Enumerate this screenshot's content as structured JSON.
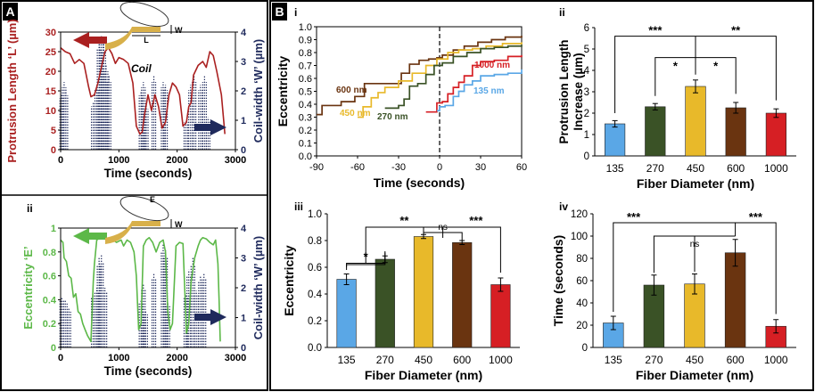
{
  "panel_labels": {
    "A": "A",
    "B": "B"
  },
  "sub_labels": {
    "Ai": "i",
    "Aii": "ii",
    "Bi": "i",
    "Bii": "ii",
    "Biii": "iii",
    "Biv": "iv"
  },
  "colors": {
    "red": "#aa2020",
    "navy": "#1f2a5c",
    "green": "#5cb848",
    "blue": "#5aa7e6",
    "darkgreen": "#3a5226",
    "yellow": "#e8b92a",
    "brown": "#6a3410",
    "bred": "#d61f24",
    "gold": "#d8b04a"
  },
  "chart_data": [
    {
      "id": "Ai",
      "type": "line",
      "title": "",
      "xlabel": "Time (seconds)",
      "ylabel": "Protrusion Length ‘L’ (µm)",
      "y2label": "Coil-width ‘W’ (µm)",
      "annotation": "Coil",
      "diagram_labels": {
        "W": "W",
        "L": "L"
      },
      "xlim": [
        0,
        3000
      ],
      "ylim": [
        0,
        30
      ],
      "y2lim": [
        0,
        4
      ],
      "xticks": [
        0,
        1000,
        2000,
        3000
      ],
      "yticks": [
        0,
        5,
        10,
        15,
        20,
        25,
        30
      ],
      "y2ticks": [
        0,
        1,
        2,
        3,
        4
      ],
      "series": [
        {
          "name": "Protrusion length",
          "axis": "left",
          "color": "#aa2020",
          "x": [
            0,
            80,
            160,
            240,
            320,
            400,
            480,
            520,
            580,
            640,
            700,
            760,
            820,
            880,
            940,
            1000,
            1080,
            1160,
            1240,
            1300,
            1360,
            1400,
            1440,
            1500,
            1560,
            1620,
            1680,
            1740,
            1800,
            1860,
            1920,
            1980,
            2040,
            2100,
            2160,
            2200,
            2240,
            2280,
            2360,
            2440,
            2500,
            2560,
            2620,
            2680,
            2760,
            2820
          ],
          "y": [
            26,
            25,
            24.5,
            22,
            23,
            22,
            16,
            13.5,
            14,
            17,
            21,
            25,
            26,
            24.5,
            22,
            23.5,
            23,
            22,
            17,
            6,
            4,
            4.5,
            9,
            14,
            10,
            14,
            11,
            5.5,
            7,
            14,
            17,
            16,
            14,
            6,
            7,
            11,
            12,
            19,
            21.5,
            22.5,
            21,
            25,
            24,
            20,
            14,
            4
          ]
        },
        {
          "name": "Coil-width",
          "axis": "right",
          "color": "#1f2a5c",
          "style": "dotted",
          "spikes": [
            [
              20,
              1.9
            ],
            [
              60,
              2.3
            ],
            [
              90,
              2.0
            ],
            [
              560,
              1.6
            ],
            [
              620,
              2.2
            ],
            [
              660,
              3.7
            ],
            [
              700,
              3.9
            ],
            [
              740,
              3.6
            ],
            [
              780,
              2.9
            ],
            [
              830,
              2.5
            ],
            [
              1380,
              2.0
            ],
            [
              1420,
              2.3
            ],
            [
              1470,
              1.5
            ],
            [
              1600,
              2.5
            ],
            [
              1760,
              2.3
            ],
            [
              1800,
              2.2
            ],
            [
              2150,
              1.0
            ],
            [
              2230,
              2.2
            ],
            [
              2290,
              2.5
            ],
            [
              2400,
              2.2
            ],
            [
              2470,
              2.5
            ],
            [
              2530,
              1.1
            ]
          ]
        }
      ]
    },
    {
      "id": "Aii",
      "type": "line",
      "title": "",
      "xlabel": "Time (seconds)",
      "ylabel": "Eccentricity ‘E’",
      "y2label": "Coil-width ‘W’ (µm)",
      "diagram_labels": {
        "E": "E",
        "W": "W"
      },
      "xlim": [
        0,
        3000
      ],
      "ylim": [
        0,
        1
      ],
      "y2lim": [
        0,
        4
      ],
      "xticks": [
        0,
        1000,
        2000,
        3000
      ],
      "yticks": [
        0,
        0.2,
        0.4,
        0.6,
        0.8,
        1
      ],
      "y2ticks": [
        0,
        1,
        2,
        3,
        4
      ],
      "series": [
        {
          "name": "Eccentricity",
          "axis": "left",
          "color": "#5cb848",
          "x": [
            0,
            40,
            60,
            100,
            140,
            180,
            220,
            260,
            300,
            340,
            380,
            420,
            460,
            520,
            560,
            580,
            620,
            680,
            760,
            820,
            860,
            900,
            960,
            1000,
            1040,
            1080,
            1140,
            1200,
            1260,
            1300,
            1340,
            1380,
            1420,
            1470,
            1520,
            1580,
            1640,
            1700,
            1760,
            1800,
            1840,
            1880,
            1920,
            1980,
            2040,
            2100,
            2160,
            2200,
            2240,
            2300,
            2360,
            2400,
            2440,
            2500,
            2560,
            2620,
            2660,
            2700,
            2720,
            2740
          ],
          "y": [
            0.9,
            0.88,
            0.75,
            0.72,
            0.6,
            0.58,
            0.42,
            0.45,
            0.3,
            0.28,
            0.2,
            0.15,
            0.1,
            0.05,
            0.55,
            0.7,
            0.9,
            0.92,
            0.91,
            0.89,
            0.9,
            0.9,
            0.88,
            0.89,
            0.9,
            0.85,
            0.9,
            0.88,
            0.8,
            0.6,
            0.15,
            0.2,
            0.85,
            0.9,
            0.92,
            0.88,
            0.8,
            0.88,
            0.9,
            0.8,
            0.3,
            0.15,
            0.2,
            0.85,
            0.88,
            0.87,
            0.12,
            0.2,
            0.55,
            0.75,
            0.85,
            0.9,
            0.92,
            0.91,
            0.88,
            0.86,
            0.9,
            0.7,
            0.4,
            0.05
          ]
        },
        {
          "name": "Coil-width",
          "axis": "right",
          "color": "#1f2a5c",
          "style": "dotted",
          "spikes": [
            [
              20,
              1.7
            ],
            [
              80,
              1.6
            ],
            [
              140,
              1.3
            ],
            [
              560,
              1.8
            ],
            [
              620,
              2.0
            ],
            [
              660,
              3.0
            ],
            [
              700,
              3.1
            ],
            [
              760,
              2.0
            ],
            [
              1380,
              1.6
            ],
            [
              1420,
              2.1
            ],
            [
              1460,
              1.2
            ],
            [
              1600,
              2.5
            ],
            [
              1760,
              3.5
            ],
            [
              1800,
              3.3
            ],
            [
              1840,
              1.5
            ],
            [
              2150,
              1.8
            ],
            [
              2200,
              2.6
            ],
            [
              2270,
              3.0
            ],
            [
              2330,
              1.9
            ],
            [
              2400,
              2.4
            ],
            [
              2460,
              2.5
            ]
          ]
        }
      ]
    },
    {
      "id": "Bi",
      "type": "line",
      "xlabel": "Time (seconds)",
      "ylabel": "Eccentricity",
      "xlim": [
        -90,
        60
      ],
      "ylim": [
        0,
        1
      ],
      "xticks": [
        -90,
        -60,
        -30,
        0,
        30,
        60
      ],
      "yticks": [
        0,
        0.1,
        0.2,
        0.3,
        0.4,
        0.5,
        0.6,
        0.7,
        0.8,
        0.9,
        1
      ],
      "series": [
        {
          "name": "600 nm",
          "color": "#6a3410",
          "x": [
            -90,
            -86,
            -80,
            -72,
            -62,
            -55,
            -45,
            -35,
            -28,
            -22,
            -15,
            -8,
            -2,
            2,
            10,
            18,
            28,
            38,
            48,
            60
          ],
          "y": [
            0.32,
            0.39,
            0.39,
            0.42,
            0.46,
            0.56,
            0.56,
            0.56,
            0.64,
            0.71,
            0.74,
            0.75,
            0.76,
            0.78,
            0.82,
            0.85,
            0.88,
            0.9,
            0.92,
            0.93
          ]
        },
        {
          "name": "450 nm",
          "color": "#e8b92a",
          "x": [
            -60,
            -56,
            -50,
            -45,
            -40,
            -30,
            -20,
            -10,
            -2,
            6,
            14,
            24,
            34,
            46,
            60
          ],
          "y": [
            0.3,
            0.38,
            0.45,
            0.49,
            0.53,
            0.58,
            0.64,
            0.7,
            0.75,
            0.8,
            0.82,
            0.83,
            0.85,
            0.87,
            0.88
          ]
        },
        {
          "name": "270 nm",
          "color": "#3a5226",
          "x": [
            -40,
            -36,
            -30,
            -26,
            -22,
            -16,
            -10,
            -4,
            2,
            10,
            20,
            30,
            40,
            50,
            60
          ],
          "y": [
            0.37,
            0.37,
            0.39,
            0.44,
            0.54,
            0.56,
            0.63,
            0.7,
            0.72,
            0.77,
            0.8,
            0.83,
            0.84,
            0.85,
            0.86
          ]
        },
        {
          "name": "1000 nm",
          "color": "#d61f24",
          "x": [
            -10,
            -6,
            -2,
            0,
            2,
            6,
            10,
            14,
            18,
            24,
            30,
            40,
            50,
            60
          ],
          "y": [
            0.34,
            0.34,
            0.41,
            0.41,
            0.42,
            0.48,
            0.53,
            0.57,
            0.62,
            0.7,
            0.73,
            0.74,
            0.77,
            0.78
          ]
        },
        {
          "name": "135 nm",
          "color": "#5aa7e6",
          "x": [
            -2,
            0,
            4,
            8,
            10,
            14,
            18,
            24,
            30,
            40,
            50,
            60
          ],
          "y": [
            0.35,
            0.38,
            0.39,
            0.39,
            0.46,
            0.5,
            0.55,
            0.58,
            0.62,
            0.63,
            0.64,
            0.67
          ]
        }
      ],
      "vline": 0
    },
    {
      "id": "Bii",
      "type": "bar",
      "xlabel": "Fiber Diameter (nm)",
      "ylabel": "Protrusion Length Increase (µm)",
      "categories": [
        "135",
        "270",
        "450",
        "600",
        "1000"
      ],
      "values": [
        1.5,
        2.3,
        3.25,
        2.25,
        2.0
      ],
      "errors": [
        0.15,
        0.15,
        0.3,
        0.25,
        0.2
      ],
      "ylim": [
        0,
        6
      ],
      "yticks": [
        0,
        1,
        2,
        3,
        4,
        5,
        6
      ],
      "colors": [
        "#5aa7e6",
        "#3a5226",
        "#e8b92a",
        "#6a3410",
        "#d61f24"
      ],
      "significance": [
        {
          "from": 0,
          "to": 4,
          "mid": 2,
          "label": "***",
          "label2": "**",
          "level": 5.5
        },
        {
          "from": 1,
          "to": 3,
          "mid": 2,
          "label": "*",
          "label2": "*",
          "level": 4.3
        }
      ]
    },
    {
      "id": "Biii",
      "type": "bar",
      "xlabel": "Fiber Diameter (nm)",
      "ylabel": "Eccentricity",
      "categories": [
        "135",
        "270",
        "450",
        "600",
        "1000"
      ],
      "values": [
        0.51,
        0.66,
        0.83,
        0.785,
        0.47
      ],
      "errors": [
        0.04,
        0.025,
        0.015,
        0.015,
        0.05
      ],
      "ylim": [
        0,
        1
      ],
      "yticks": [
        0,
        0.2,
        0.4,
        0.6,
        0.8,
        1
      ],
      "colors": [
        "#5aa7e6",
        "#3a5226",
        "#e8b92a",
        "#6a3410",
        "#d61f24"
      ],
      "significance": [
        {
          "label": "*"
        },
        {
          "label": "**"
        },
        {
          "label": "ns"
        },
        {
          "label": "***"
        }
      ]
    },
    {
      "id": "Biv",
      "type": "bar",
      "xlabel": "Fiber Diameter (nm)",
      "ylabel": "Time (seconds)",
      "categories": [
        "135",
        "270",
        "450",
        "600",
        "1000"
      ],
      "values": [
        22,
        56,
        57,
        85,
        19
      ],
      "errors": [
        6,
        9,
        9,
        12,
        6
      ],
      "ylim": [
        0,
        120
      ],
      "yticks": [
        0,
        20,
        40,
        60,
        80,
        100,
        120
      ],
      "colors": [
        "#5aa7e6",
        "#3a5226",
        "#e8b92a",
        "#6a3410",
        "#d61f24"
      ],
      "significance": [
        {
          "label": "***"
        },
        {
          "label": "ns"
        },
        {
          "label": "***"
        }
      ]
    }
  ]
}
